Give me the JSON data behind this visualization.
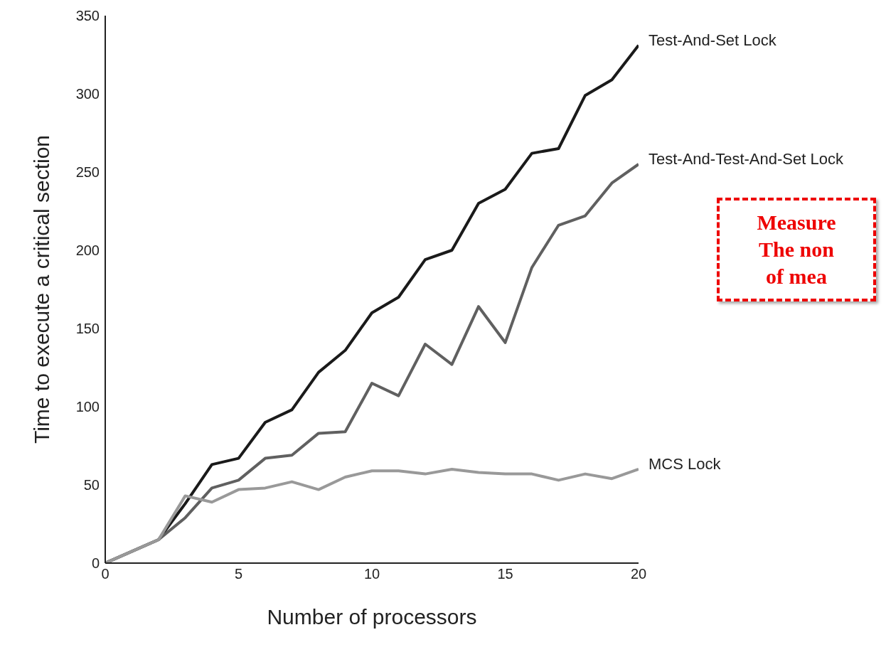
{
  "chart_data": {
    "type": "line",
    "xlabel": "Number of processors",
    "ylabel": "Time to execute a critical section",
    "x": [
      0,
      2,
      3,
      4,
      5,
      6,
      7,
      8,
      9,
      10,
      11,
      12,
      13,
      14,
      15,
      16,
      17,
      18,
      19,
      20
    ],
    "series": [
      {
        "name": "Test-And-Set Lock",
        "color": "#1a1a1a",
        "values": [
          0,
          15,
          38,
          63,
          67,
          90,
          98,
          122,
          136,
          160,
          170,
          194,
          200,
          230,
          239,
          262,
          265,
          299,
          309,
          331
        ]
      },
      {
        "name": "Test-And-Test-And-Set Lock",
        "color": "#606060",
        "values": [
          0,
          15,
          29,
          48,
          53,
          67,
          69,
          83,
          84,
          115,
          107,
          140,
          127,
          164,
          141,
          189,
          216,
          222,
          243,
          255
        ]
      },
      {
        "name": "MCS Lock",
        "color": "#999999",
        "values": [
          0,
          15,
          43,
          39,
          47,
          48,
          52,
          47,
          55,
          59,
          59,
          57,
          60,
          58,
          57,
          57,
          53,
          57,
          54,
          60
        ]
      }
    ],
    "xlim": [
      0,
      20
    ],
    "xticks": [
      0,
      5,
      10,
      15,
      20
    ],
    "ylim": [
      0,
      350
    ],
    "yticks": [
      0,
      50,
      100,
      150,
      200,
      250,
      300,
      350
    ],
    "grid": false,
    "marker": "none",
    "line_style": "solid",
    "annotations": [
      "Measure",
      "The non",
      "of mea"
    ]
  }
}
